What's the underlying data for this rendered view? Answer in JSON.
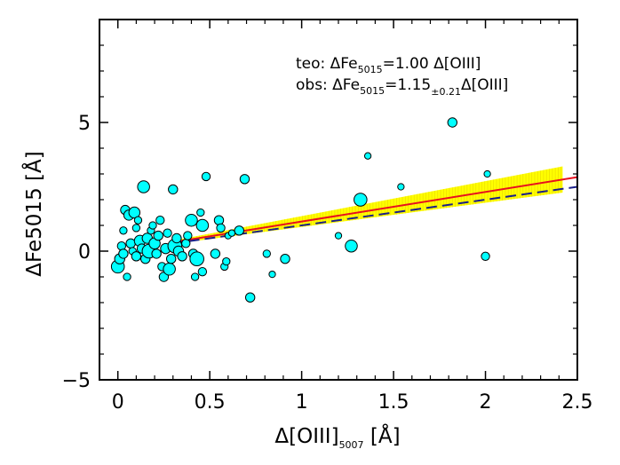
{
  "chart_data": {
    "type": "scatter",
    "title": "",
    "xlabel_main": "Δ[OIII]",
    "xlabel_sub": "5007",
    "xlabel_unit": " [Å]",
    "ylabel": "ΔFe5015 [Å]",
    "xlim": [
      -0.1,
      2.5
    ],
    "ylim": [
      -5,
      9
    ],
    "xticks": [
      0,
      0.5,
      1,
      1.5,
      2,
      2.5
    ],
    "xtick_labels": [
      "0",
      "0.5",
      "1",
      "1.5",
      "2",
      "2.5"
    ],
    "yticks": [
      -5,
      0,
      5
    ],
    "ytick_labels": [
      "−5",
      "0",
      "5"
    ],
    "grid": false,
    "legend": {
      "teo_prefix": "teo:  ΔFe",
      "teo_sub": "5015",
      "teo_suffix": "=1.00  Δ[OIII]",
      "obs_prefix": "obs:  ΔFe",
      "obs_sub": "5015",
      "obs_mid": "=1.15",
      "obs_err": "±0.21",
      "obs_suffix": "Δ[OIII]"
    },
    "lines": [
      {
        "label": "obs",
        "slope": 1.15,
        "color": "#e8101e",
        "style": "solid",
        "x_range": [
          0.3,
          2.5
        ]
      },
      {
        "label": "teo",
        "slope": 1.0,
        "color": "#1b1f8a",
        "style": "dashed",
        "x_range": [
          0.3,
          2.5
        ]
      }
    ],
    "band": {
      "slope_low": 0.94,
      "slope_high": 1.36,
      "x_range": [
        0.3,
        2.42
      ],
      "color": "#ffff00"
    },
    "marker_color": "#00ffff",
    "points": [
      {
        "x": 0.0,
        "y": -0.6,
        "s": 1.4
      },
      {
        "x": 0.01,
        "y": -0.3,
        "s": 1.1
      },
      {
        "x": 0.02,
        "y": 0.2,
        "s": 0.9
      },
      {
        "x": 0.03,
        "y": 0.8,
        "s": 0.8
      },
      {
        "x": 0.03,
        "y": -0.1,
        "s": 1.0
      },
      {
        "x": 0.04,
        "y": 1.6,
        "s": 1.0
      },
      {
        "x": 0.05,
        "y": -1.0,
        "s": 0.8
      },
      {
        "x": 0.06,
        "y": 1.4,
        "s": 1.1
      },
      {
        "x": 0.07,
        "y": 0.3,
        "s": 1.0
      },
      {
        "x": 0.08,
        "y": 0.0,
        "s": 0.8
      },
      {
        "x": 0.09,
        "y": 1.5,
        "s": 1.2
      },
      {
        "x": 0.1,
        "y": -0.2,
        "s": 1.0
      },
      {
        "x": 0.1,
        "y": 0.9,
        "s": 0.8
      },
      {
        "x": 0.11,
        "y": 1.2,
        "s": 0.8
      },
      {
        "x": 0.12,
        "y": 0.4,
        "s": 1.2
      },
      {
        "x": 0.13,
        "y": 0.1,
        "s": 1.0
      },
      {
        "x": 0.14,
        "y": 2.5,
        "s": 1.3
      },
      {
        "x": 0.15,
        "y": -0.3,
        "s": 1.0
      },
      {
        "x": 0.16,
        "y": 0.5,
        "s": 1.1
      },
      {
        "x": 0.17,
        "y": 0.0,
        "s": 1.5
      },
      {
        "x": 0.18,
        "y": 0.8,
        "s": 0.8
      },
      {
        "x": 0.19,
        "y": 1.0,
        "s": 0.8
      },
      {
        "x": 0.2,
        "y": 0.3,
        "s": 1.2
      },
      {
        "x": 0.21,
        "y": -0.1,
        "s": 1.0
      },
      {
        "x": 0.22,
        "y": 0.6,
        "s": 1.0
      },
      {
        "x": 0.23,
        "y": 1.2,
        "s": 0.9
      },
      {
        "x": 0.24,
        "y": -0.6,
        "s": 0.9
      },
      {
        "x": 0.25,
        "y": -1.0,
        "s": 1.0
      },
      {
        "x": 0.26,
        "y": 0.1,
        "s": 1.1
      },
      {
        "x": 0.27,
        "y": 0.7,
        "s": 0.9
      },
      {
        "x": 0.28,
        "y": -0.7,
        "s": 1.3
      },
      {
        "x": 0.29,
        "y": -0.3,
        "s": 1.0
      },
      {
        "x": 0.3,
        "y": 2.4,
        "s": 1.0
      },
      {
        "x": 0.31,
        "y": 0.2,
        "s": 1.5
      },
      {
        "x": 0.32,
        "y": 0.5,
        "s": 1.0
      },
      {
        "x": 0.33,
        "y": 0.0,
        "s": 1.1
      },
      {
        "x": 0.35,
        "y": -0.2,
        "s": 1.0
      },
      {
        "x": 0.37,
        "y": 0.3,
        "s": 0.9
      },
      {
        "x": 0.38,
        "y": 0.6,
        "s": 0.9
      },
      {
        "x": 0.4,
        "y": 1.2,
        "s": 1.3
      },
      {
        "x": 0.41,
        "y": -0.1,
        "s": 1.0
      },
      {
        "x": 0.42,
        "y": -1.0,
        "s": 0.8
      },
      {
        "x": 0.43,
        "y": -0.3,
        "s": 1.5
      },
      {
        "x": 0.45,
        "y": 1.5,
        "s": 0.8
      },
      {
        "x": 0.46,
        "y": 1.0,
        "s": 1.3
      },
      {
        "x": 0.46,
        "y": -0.8,
        "s": 0.9
      },
      {
        "x": 0.48,
        "y": 2.9,
        "s": 0.9
      },
      {
        "x": 0.53,
        "y": -0.1,
        "s": 1.0
      },
      {
        "x": 0.55,
        "y": 1.2,
        "s": 1.0
      },
      {
        "x": 0.56,
        "y": 0.9,
        "s": 0.9
      },
      {
        "x": 0.58,
        "y": -0.6,
        "s": 0.8
      },
      {
        "x": 0.59,
        "y": -0.4,
        "s": 0.8
      },
      {
        "x": 0.6,
        "y": 0.6,
        "s": 0.7
      },
      {
        "x": 0.62,
        "y": 0.7,
        "s": 0.7
      },
      {
        "x": 0.66,
        "y": 0.8,
        "s": 1.0
      },
      {
        "x": 0.69,
        "y": 2.8,
        "s": 1.0
      },
      {
        "x": 0.72,
        "y": -1.8,
        "s": 1.0
      },
      {
        "x": 0.81,
        "y": -0.1,
        "s": 0.8
      },
      {
        "x": 0.84,
        "y": -0.9,
        "s": 0.7
      },
      {
        "x": 0.91,
        "y": -0.3,
        "s": 1.0
      },
      {
        "x": 1.2,
        "y": 0.6,
        "s": 0.7
      },
      {
        "x": 1.27,
        "y": 0.2,
        "s": 1.3
      },
      {
        "x": 1.32,
        "y": 2.0,
        "s": 1.4
      },
      {
        "x": 1.36,
        "y": 3.7,
        "s": 0.7
      },
      {
        "x": 1.54,
        "y": 2.5,
        "s": 0.7
      },
      {
        "x": 1.82,
        "y": 5.0,
        "s": 1.0
      },
      {
        "x": 2.0,
        "y": -0.2,
        "s": 0.9
      },
      {
        "x": 2.01,
        "y": 3.0,
        "s": 0.7
      }
    ]
  }
}
